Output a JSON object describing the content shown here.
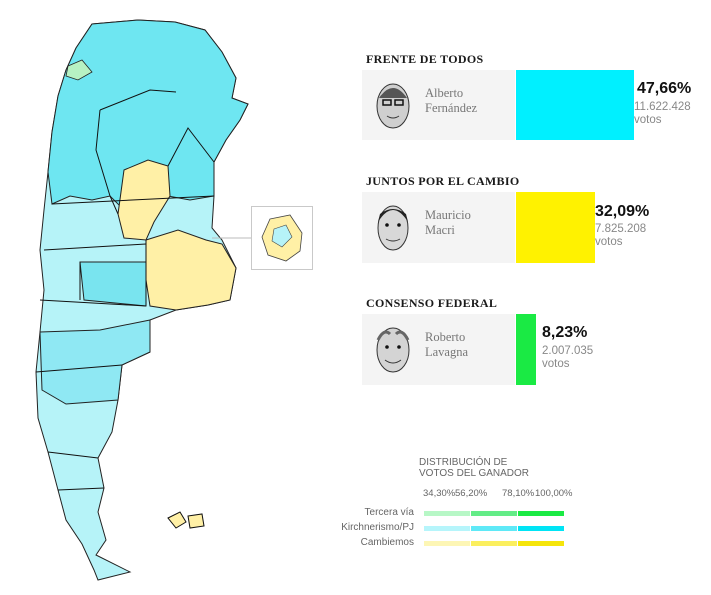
{
  "candidates": [
    {
      "party": "FRENTE DE TODOS",
      "name_line1": "Alberto",
      "name_line2": "Fernández",
      "percent": "47,66%",
      "votes_number": "11.622.428",
      "votes_label": "votos",
      "color": "#00f0ff",
      "share": 47.66
    },
    {
      "party": "JUNTOS POR EL CAMBIO",
      "name_line1": "Mauricio",
      "name_line2": "Macri",
      "percent": "32,09%",
      "votes_number": "7.825.208",
      "votes_label": "votos",
      "color": "#fff200",
      "share": 32.09
    },
    {
      "party": "CONSENSO FEDERAL",
      "name_line1": "Roberto",
      "name_line2": "Lavagna",
      "percent": "8,23%",
      "votes_number": "2.007.035",
      "votes_label": "votos",
      "color": "#1aea44",
      "share": 8.23
    }
  ],
  "legend": {
    "title_line1": "DISTRIBUCIÓN DE",
    "title_line2": "VOTOS DEL GANADOR",
    "ticks": [
      "34,30%",
      "56,20%",
      "78,10%",
      "100,00%"
    ],
    "rows": [
      {
        "label": "Tercera vía",
        "colors": [
          "#b7f7c6",
          "#63ec87",
          "#1aea44"
        ]
      },
      {
        "label": "Kirchnerismo/PJ",
        "colors": [
          "#b6f5fb",
          "#5fe9f7",
          "#00e4f5"
        ]
      },
      {
        "label": "Cambiemos",
        "colors": [
          "#fdf6b5",
          "#fbef5e",
          "#f5e50b"
        ]
      }
    ]
  },
  "map": {
    "colors": {
      "kirchnerismo_light": "#b4f3f8",
      "kirchnerismo_mid": "#67e8f2",
      "cambiemos_light": "#fff0a6",
      "tercera_via": "#b7f2c3",
      "border": "#111111"
    },
    "islands_label": ""
  }
}
